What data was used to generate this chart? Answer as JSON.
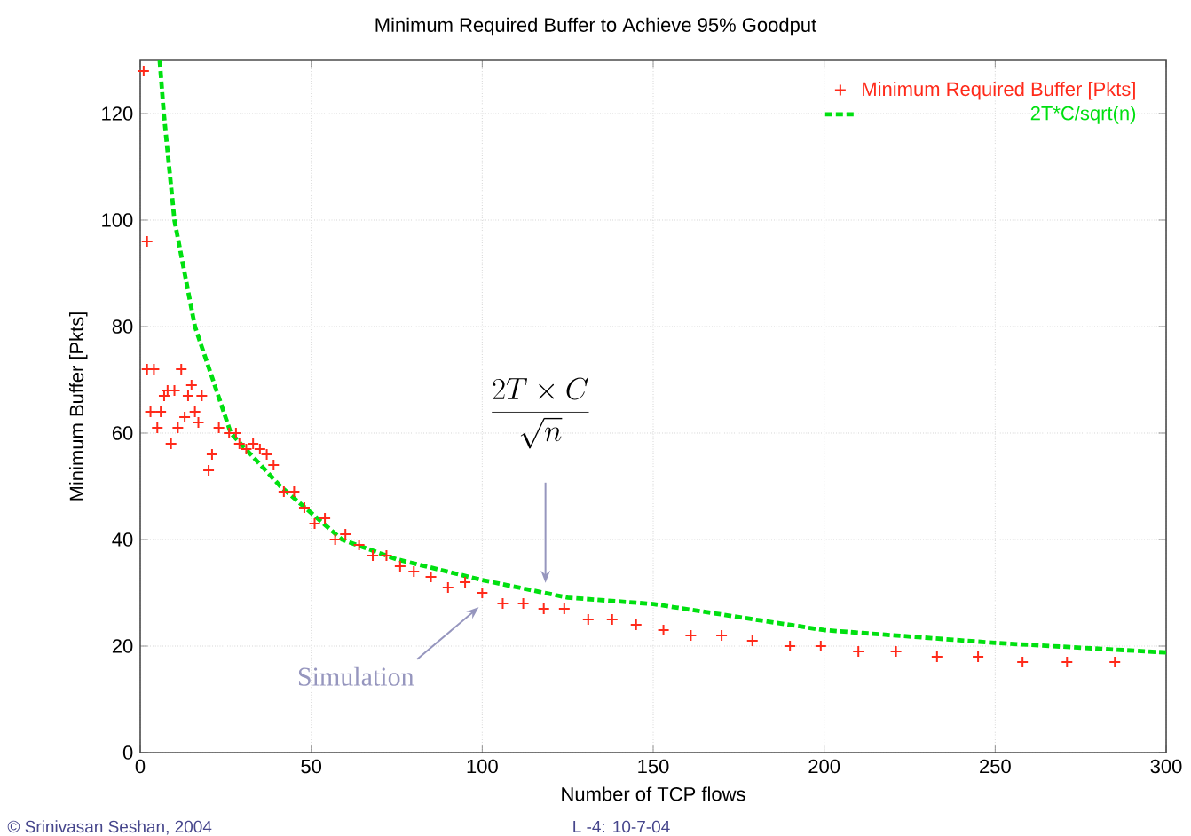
{
  "chart_data": {
    "type": "scatter",
    "title": "Minimum Required Buffer to Achieve 95% Goodput",
    "xlabel": "Number of TCP flows",
    "ylabel": "Minimum Buffer [Pkts]",
    "xlim": [
      0,
      300
    ],
    "ylim": [
      0,
      130
    ],
    "xticks": [
      0,
      50,
      100,
      150,
      200,
      250,
      300
    ],
    "yticks": [
      0,
      20,
      40,
      60,
      80,
      100,
      120
    ],
    "grid": true,
    "legend": "top right",
    "marker": "cross",
    "series": [
      {
        "name": "Minimum Required Buffer [Pkts]",
        "color": "#ff2a1a",
        "x": [
          1,
          2,
          2,
          4,
          12,
          3,
          6,
          5,
          8,
          10,
          7,
          9,
          11,
          13,
          14,
          15,
          16,
          17,
          18,
          21,
          20,
          23,
          26,
          28,
          29,
          31,
          33,
          35,
          37,
          39,
          42,
          45,
          48,
          51,
          54,
          57,
          60,
          64,
          68,
          72,
          76,
          80,
          85,
          90,
          95,
          100,
          106,
          112,
          118,
          124,
          131,
          138,
          145,
          153,
          161,
          170,
          179,
          190,
          199,
          210,
          221,
          233,
          245,
          258,
          271,
          285
        ],
        "values": [
          128,
          96,
          72,
          72,
          72,
          64,
          64,
          61,
          68,
          68,
          67,
          58,
          61,
          63,
          67,
          69,
          64,
          62,
          67,
          56,
          53,
          61,
          60,
          60,
          58,
          57,
          58,
          57,
          56,
          54,
          49,
          49,
          46,
          43,
          44,
          40,
          41,
          39,
          37,
          37,
          35,
          34,
          33,
          31,
          32,
          30,
          28,
          28,
          27,
          27,
          25,
          25,
          24,
          23,
          22,
          22,
          21,
          20,
          20,
          19,
          19,
          18,
          18,
          17,
          17,
          17
        ]
      },
      {
        "name": "2T*C/sqrt(n)",
        "type": "line",
        "marker": "none",
        "line_style": "dashed",
        "color": "#00e010",
        "x": [
          5.7,
          6.9,
          10,
          16,
          26.5,
          41,
          59,
          75,
          100,
          125,
          150,
          200,
          250,
          300
        ],
        "values": [
          130,
          120,
          100,
          80,
          60,
          50,
          40,
          36.3,
          32.4,
          29.1,
          27.9,
          23,
          20.6,
          18.8
        ]
      }
    ],
    "annotations": [
      "\\frac{2T\\times C}{\\sqrt{n}}",
      "Simulation",
      "© Srinivasan Seshan, 2004",
      "L -4: 10-7-04"
    ]
  }
}
